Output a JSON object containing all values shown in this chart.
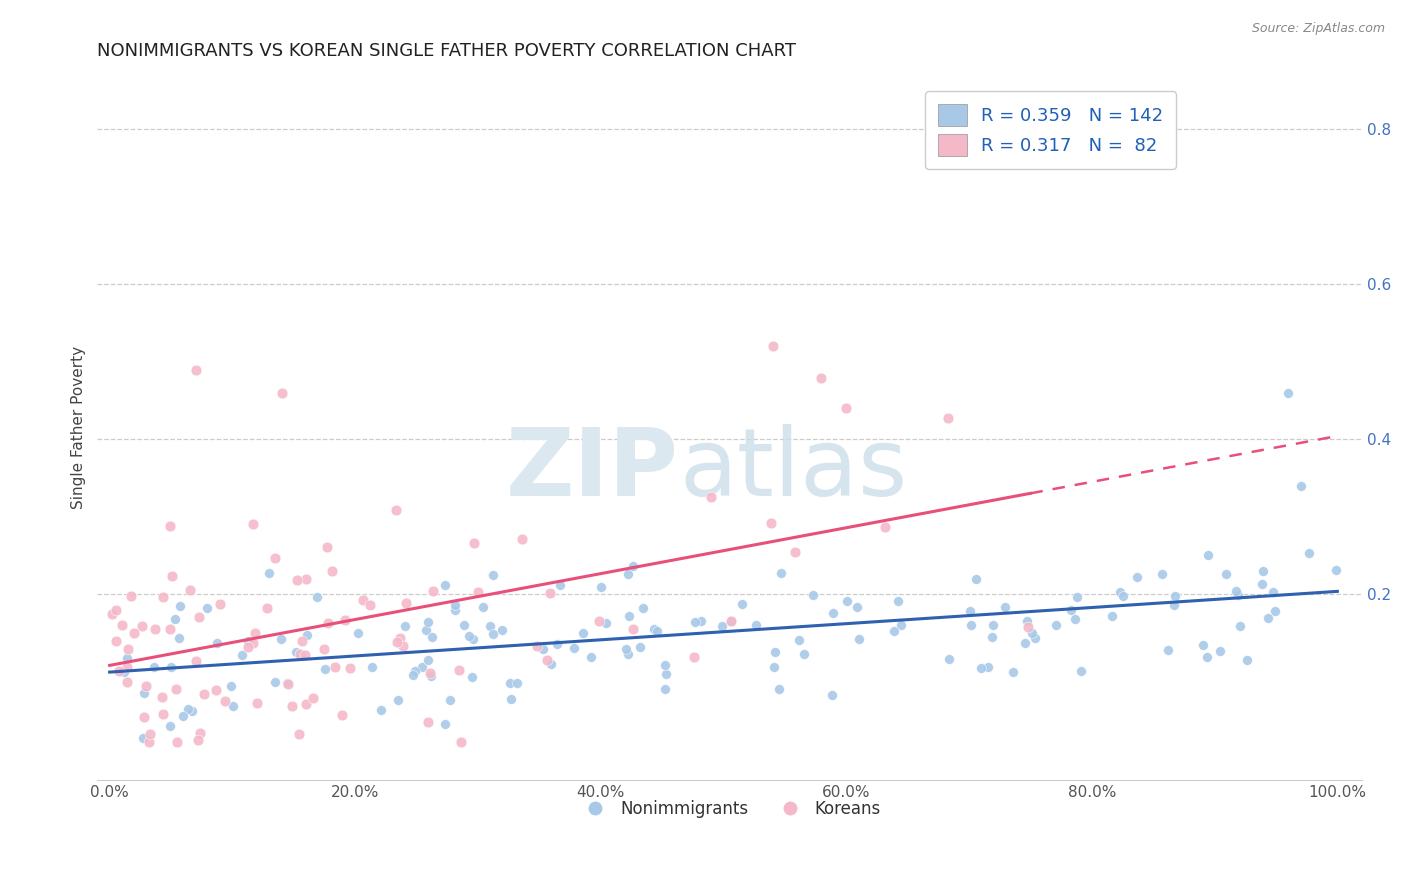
{
  "title": "NONIMMIGRANTS VS KOREAN SINGLE FATHER POVERTY CORRELATION CHART",
  "source_text": "Source: ZipAtlas.com",
  "ylabel": "Single Father Poverty",
  "xlim": [
    -0.01,
    1.02
  ],
  "ylim": [
    -0.04,
    0.87
  ],
  "xtick_labels": [
    "0.0%",
    "20.0%",
    "40.0%",
    "60.0%",
    "80.0%",
    "100.0%"
  ],
  "xtick_vals": [
    0.0,
    0.2,
    0.4,
    0.6,
    0.8,
    1.0
  ],
  "ytick_labels": [
    "20.0%",
    "40.0%",
    "60.0%",
    "80.0%"
  ],
  "ytick_vals": [
    0.2,
    0.4,
    0.6,
    0.8
  ],
  "blue_color": "#a8c8e8",
  "pink_color": "#f4b8c8",
  "blue_line_color": "#3060b0",
  "pink_line_color": "#e8507a",
  "legend_label1": "Nonimmigrants",
  "legend_label2": "Koreans",
  "title_fontsize": 13,
  "axis_label_fontsize": 11,
  "tick_fontsize": 11,
  "background_color": "#ffffff",
  "blue_intercept": 0.095,
  "blue_slope": 0.115,
  "pink_intercept": 0.085,
  "pink_slope": 0.28,
  "blue_noise": 0.045,
  "pink_noise": 0.07,
  "N_blue": 142,
  "N_pink": 82
}
